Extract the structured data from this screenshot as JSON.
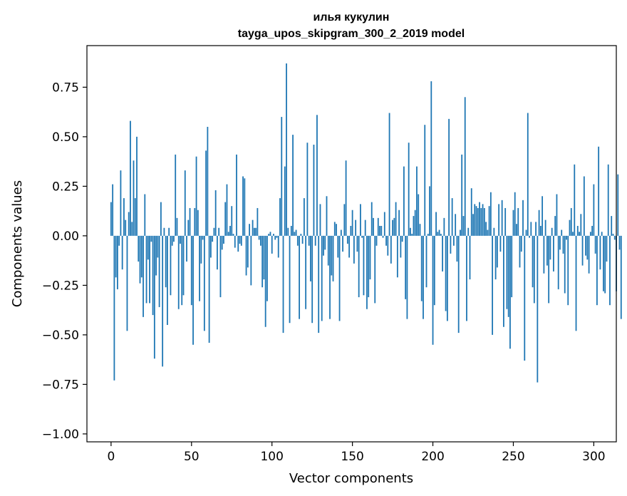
{
  "chart_data": {
    "type": "bar",
    "title_line1": "илья кукулин",
    "title_line2": "tayga_upos_skipgram_300_2_2019 model",
    "xlabel": "Vector components",
    "ylabel": "Components values",
    "xlim": [
      -15,
      314
    ],
    "ylim": [
      -1.04,
      0.96
    ],
    "xticks": [
      0,
      50,
      100,
      150,
      200,
      250,
      300
    ],
    "xtick_labels": [
      "0",
      "50",
      "100",
      "150",
      "200",
      "250",
      "300"
    ],
    "yticks": [
      -1.0,
      -0.75,
      -0.5,
      -0.25,
      0.0,
      0.25,
      0.5,
      0.75
    ],
    "ytick_labels": [
      "−1.00",
      "−0.75",
      "−0.50",
      "−0.25",
      "0.00",
      "0.25",
      "0.50",
      "0.75"
    ],
    "bar_color": "#1f77b4",
    "grid": false,
    "values": [
      0.17,
      0.26,
      -0.73,
      -0.21,
      -0.27,
      -0.05,
      0.33,
      -0.17,
      0.19,
      0.08,
      -0.48,
      0.12,
      0.58,
      0.07,
      0.38,
      0.19,
      0.5,
      -0.13,
      -0.24,
      -0.21,
      -0.41,
      0.21,
      -0.34,
      -0.12,
      -0.34,
      -0.03,
      -0.4,
      -0.62,
      -0.2,
      -0.11,
      -0.36,
      0.17,
      -0.66,
      0.04,
      -0.26,
      -0.45,
      0.04,
      -0.3,
      -0.05,
      -0.03,
      0.41,
      0.09,
      -0.37,
      -0.04,
      -0.35,
      -0.3,
      0.33,
      -0.13,
      0.08,
      0.14,
      -0.35,
      -0.55,
      0.14,
      0.4,
      0.13,
      -0.33,
      -0.14,
      -0.02,
      -0.48,
      0.43,
      0.55,
      -0.54,
      -0.11,
      -0.03,
      0.04,
      0.23,
      -0.17,
      0.04,
      -0.31,
      -0.07,
      -0.04,
      0.17,
      0.26,
      0.02,
      0.05,
      0.15,
      0.01,
      -0.06,
      0.41,
      -0.08,
      -0.04,
      -0.05,
      0.3,
      0.29,
      -0.2,
      -0.16,
      0.06,
      -0.25,
      0.08,
      0.04,
      0.04,
      0.14,
      -0.02,
      -0.05,
      -0.26,
      -0.22,
      -0.46,
      -0.33,
      0.01,
      0.02,
      -0.09,
      0.01,
      -0.02,
      -0.01,
      -0.11,
      0.19,
      0.6,
      -0.49,
      0.35,
      0.87,
      0.04,
      -0.44,
      0.05,
      0.51,
      0.02,
      0.03,
      -0.05,
      -0.42,
      0.01,
      -0.04,
      0.19,
      -0.37,
      0.47,
      -0.05,
      -0.23,
      -0.44,
      0.46,
      -0.05,
      0.61,
      -0.49,
      0.16,
      -0.43,
      -0.1,
      -0.07,
      0.2,
      -0.15,
      -0.42,
      -0.2,
      -0.23,
      0.07,
      0.06,
      -0.11,
      -0.43,
      0.03,
      -0.08,
      0.16,
      0.38,
      -0.04,
      -0.11,
      0.05,
      0.13,
      -0.14,
      0.08,
      -0.08,
      -0.31,
      0.16,
      -0.01,
      -0.3,
      0.08,
      -0.37,
      -0.31,
      -0.22,
      0.17,
      0.09,
      -0.34,
      -0.05,
      0.09,
      0.05,
      0.05,
      -0.01,
      0.12,
      -0.05,
      -0.1,
      0.62,
      -0.14,
      0.08,
      0.09,
      0.17,
      -0.21,
      0.13,
      -0.11,
      -0.03,
      0.35,
      -0.32,
      -0.42,
      0.47,
      0.04,
      0.01,
      0.1,
      0.13,
      0.35,
      0.21,
      0.06,
      -0.33,
      -0.42,
      0.56,
      -0.26,
      0.01,
      0.25,
      0.78,
      -0.55,
      -0.35,
      0.12,
      0.02,
      0.03,
      0.01,
      -0.18,
      0.09,
      -0.38,
      -0.43,
      0.59,
      -0.09,
      0.19,
      -0.05,
      0.11,
      -0.13,
      -0.49,
      0.03,
      0.41,
      0.1,
      0.7,
      -0.43,
      0.04,
      -0.22,
      0.24,
      0.11,
      0.16,
      0.15,
      0.14,
      0.17,
      0.14,
      0.16,
      0.14,
      0.07,
      0.03,
      0.15,
      0.22,
      -0.5,
      0.04,
      -0.22,
      -0.16,
      0.16,
      -0.08,
      0.18,
      -0.46,
      0.14,
      -0.37,
      -0.41,
      -0.57,
      -0.31,
      0.13,
      0.22,
      0.06,
      0.14,
      -0.16,
      -0.08,
      0.18,
      -0.63,
      0.03,
      0.62,
      -0.01,
      0.07,
      -0.26,
      -0.34,
      0.07,
      -0.74,
      0.13,
      0.05,
      0.2,
      -0.19,
      0.08,
      -0.15,
      -0.34,
      -0.12,
      0.04,
      -0.18,
      0.1,
      0.21,
      -0.27,
      -0.07,
      0.03,
      -0.09,
      -0.29,
      -0.02,
      -0.35,
      0.08,
      0.14,
      0.02,
      0.36,
      -0.48,
      0.05,
      0.02,
      0.11,
      -0.15,
      0.3,
      -0.1,
      -0.12,
      -0.19,
      0.02,
      0.05,
      0.26,
      -0.09,
      -0.35,
      0.45,
      -0.17,
      0.02,
      -0.28,
      -0.29,
      -0.13,
      0.36,
      -0.35,
      0.1,
      0.01,
      -0.02,
      -0.28,
      0.31,
      -0.07,
      -0.42
    ]
  }
}
